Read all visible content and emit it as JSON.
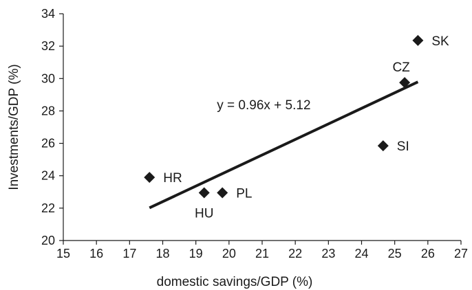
{
  "chart_data": {
    "type": "scatter",
    "xlabel": "domestic savings/GDP (%)",
    "ylabel": "Investments/GDP (%)",
    "xlim": [
      15,
      27
    ],
    "ylim": [
      20,
      34
    ],
    "x_ticks": [
      15,
      16,
      17,
      18,
      19,
      20,
      21,
      22,
      23,
      24,
      25,
      26,
      27
    ],
    "y_ticks": [
      20,
      22,
      24,
      26,
      28,
      30,
      32,
      34
    ],
    "grid": false,
    "marker": "diamond",
    "marker_color": "#1a1a1a",
    "points": [
      {
        "label": "HR",
        "x": 17.6,
        "y": 23.9,
        "label_pos": "right"
      },
      {
        "label": "HU",
        "x": 19.25,
        "y": 22.95,
        "label_pos": "below"
      },
      {
        "label": "PL",
        "x": 19.8,
        "y": 22.95,
        "label_pos": "right"
      },
      {
        "label": "SI",
        "x": 24.65,
        "y": 25.85,
        "label_pos": "right"
      },
      {
        "label": "CZ",
        "x": 25.3,
        "y": 29.75,
        "label_pos": "above"
      },
      {
        "label": "SK",
        "x": 25.7,
        "y": 32.35,
        "label_pos": "right"
      }
    ],
    "trendline": {
      "equation": "y = 0.96x + 5.12",
      "slope": 0.96,
      "intercept": 5.12,
      "x_start": 17.6,
      "x_end": 25.7
    }
  }
}
